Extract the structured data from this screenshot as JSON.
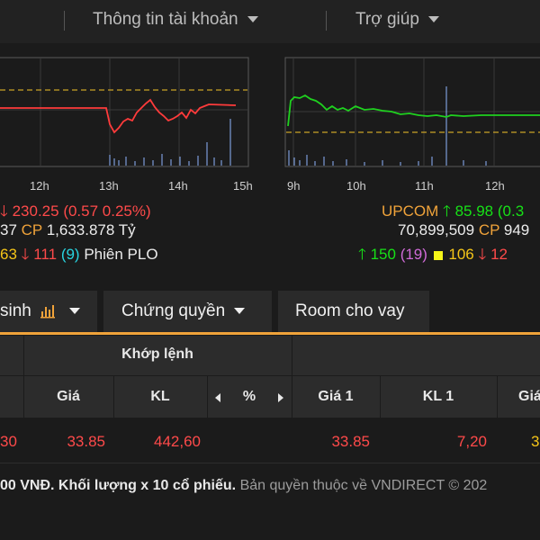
{
  "nav": {
    "account_label": "Thông tin tài khoản",
    "help_label": "Trợ giúp"
  },
  "chart_left": {
    "x_ticks": [
      "12h",
      "13h",
      "14h",
      "15h"
    ]
  },
  "chart_right": {
    "x_ticks": [
      "9h",
      "10h",
      "11h",
      "12h"
    ]
  },
  "colors": {
    "up": "#17e117",
    "down": "#ff4a4a",
    "ref": "#f5c518",
    "ceiling": "#d06bd8",
    "floor": "#28d4e0",
    "accent": "#f0a33a",
    "volume": "#8fb6ff"
  },
  "index_left": {
    "value": "230.25",
    "change": "(0.57 0.25%)",
    "volume_tail": "37",
    "cp_label": "CP",
    "cp_value": "1,633.878 Tỷ",
    "ref_count": "63",
    "down_count": "111",
    "floor_count": "(9)",
    "session": "Phiên PLO"
  },
  "index_right": {
    "name": "UPCOM",
    "value": "85.98",
    "change_partial": "(0.3",
    "volume": "70,899,509",
    "cp_label": "CP",
    "cp_partial": "949",
    "up_count": "150",
    "ceiling_count": "(19)",
    "ref_count": "106",
    "down_partial": "12"
  },
  "tabs": [
    {
      "label": "sinh"
    },
    {
      "label": "Chứng quyền"
    },
    {
      "label": "Room cho vay"
    }
  ],
  "table": {
    "group_header": "Khớp lệnh",
    "columns": {
      "gia": "Giá",
      "kl": "KL",
      "pct": "%",
      "gia1": "Giá 1",
      "kl1": "KL 1",
      "gia_cut": "Giá"
    },
    "rows": [
      {
        "left_cut": "30",
        "gia": "33.85",
        "kl": "442,60",
        "gia1": "33.85",
        "kl1": "7,20",
        "right_cut": "3"
      }
    ]
  },
  "footer": {
    "unit_text": "00 VNĐ. Khối lượng x 10 cổ phiếu.",
    "copyright": "Bản quyền thuộc về VNDIRECT © 202"
  }
}
